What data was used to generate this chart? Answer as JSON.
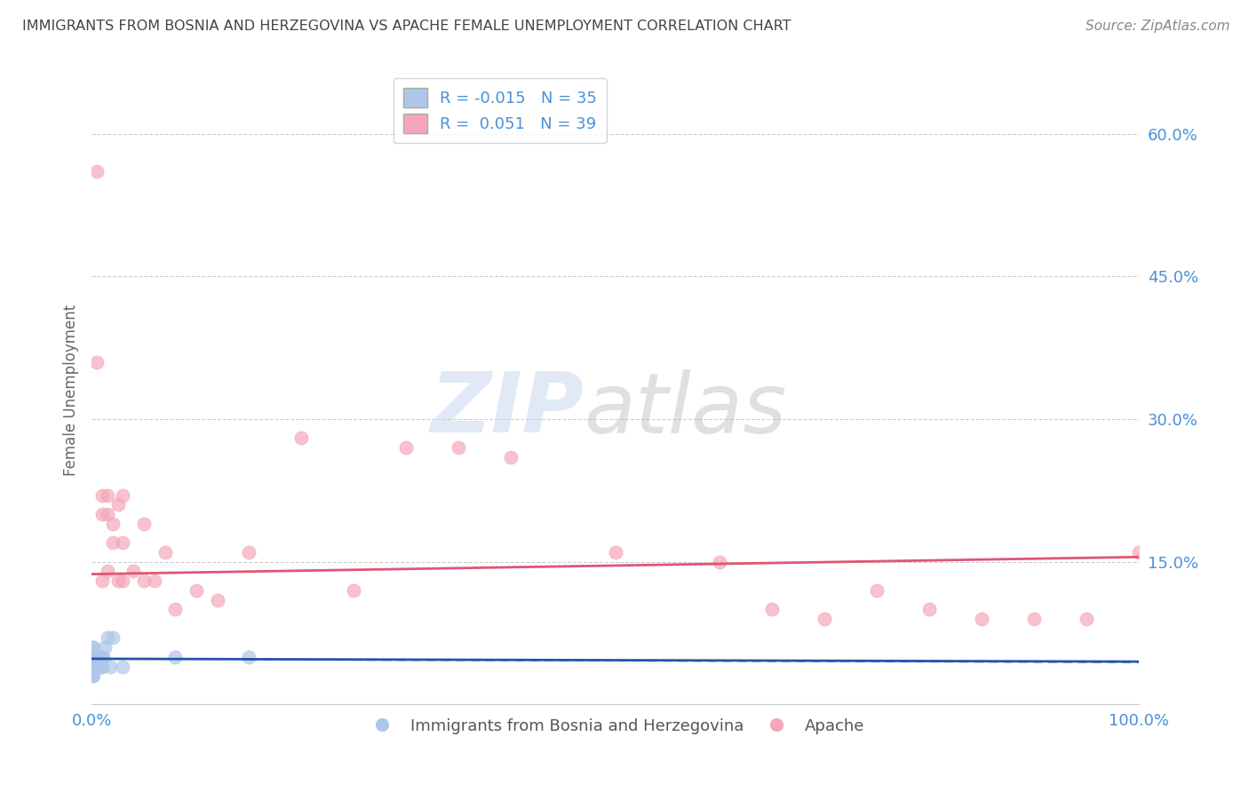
{
  "title": "IMMIGRANTS FROM BOSNIA AND HERZEGOVINA VS APACHE FEMALE UNEMPLOYMENT CORRELATION CHART",
  "source": "Source: ZipAtlas.com",
  "ylabel": "Female Unemployment",
  "xlim": [
    0,
    1.0
  ],
  "ylim": [
    0,
    0.66
  ],
  "yticks": [
    0.15,
    0.3,
    0.45,
    0.6
  ],
  "ytick_labels": [
    "15.0%",
    "30.0%",
    "45.0%",
    "60.0%"
  ],
  "xtick_labels": [
    "0.0%",
    "100.0%"
  ],
  "blue_label": "Immigrants from Bosnia and Herzegovina",
  "pink_label": "Apache",
  "blue_R": -0.015,
  "blue_N": 35,
  "pink_R": 0.051,
  "pink_N": 39,
  "blue_color": "#aec6e8",
  "pink_color": "#f4a7b9",
  "blue_line_color": "#2255aa",
  "pink_line_color": "#e05575",
  "blue_scatter_x": [
    0.0,
    0.0,
    0.0,
    0.0,
    0.001,
    0.001,
    0.001,
    0.001,
    0.001,
    0.002,
    0.002,
    0.002,
    0.002,
    0.003,
    0.003,
    0.003,
    0.004,
    0.004,
    0.005,
    0.005,
    0.006,
    0.006,
    0.007,
    0.008,
    0.009,
    0.01,
    0.01,
    0.011,
    0.013,
    0.015,
    0.018,
    0.02,
    0.03,
    0.08,
    0.15
  ],
  "blue_scatter_y": [
    0.03,
    0.04,
    0.04,
    0.05,
    0.03,
    0.04,
    0.04,
    0.05,
    0.06,
    0.03,
    0.04,
    0.05,
    0.06,
    0.04,
    0.04,
    0.05,
    0.04,
    0.05,
    0.04,
    0.05,
    0.04,
    0.05,
    0.05,
    0.05,
    0.04,
    0.04,
    0.05,
    0.05,
    0.06,
    0.07,
    0.04,
    0.07,
    0.04,
    0.05,
    0.05
  ],
  "pink_scatter_x": [
    0.005,
    0.01,
    0.01,
    0.01,
    0.015,
    0.015,
    0.015,
    0.02,
    0.02,
    0.025,
    0.025,
    0.03,
    0.03,
    0.03,
    0.04,
    0.05,
    0.05,
    0.06,
    0.07,
    0.08,
    0.1,
    0.12,
    0.15,
    0.2,
    0.25,
    0.3,
    0.35,
    0.4,
    0.5,
    0.6,
    0.65,
    0.7,
    0.75,
    0.8,
    0.85,
    0.9,
    0.95,
    1.0,
    0.005
  ],
  "pink_scatter_y": [
    0.56,
    0.2,
    0.13,
    0.22,
    0.14,
    0.2,
    0.22,
    0.19,
    0.17,
    0.21,
    0.13,
    0.13,
    0.17,
    0.22,
    0.14,
    0.19,
    0.13,
    0.13,
    0.16,
    0.1,
    0.12,
    0.11,
    0.16,
    0.28,
    0.12,
    0.27,
    0.27,
    0.26,
    0.16,
    0.15,
    0.1,
    0.09,
    0.12,
    0.1,
    0.09,
    0.09,
    0.09,
    0.16,
    0.36
  ],
  "blue_line_y0": 0.048,
  "blue_line_y1": 0.045,
  "pink_line_y0": 0.137,
  "pink_line_y1": 0.155,
  "watermark_zip": "ZIP",
  "watermark_atlas": "atlas",
  "background_color": "#ffffff",
  "grid_color": "#cccccc"
}
